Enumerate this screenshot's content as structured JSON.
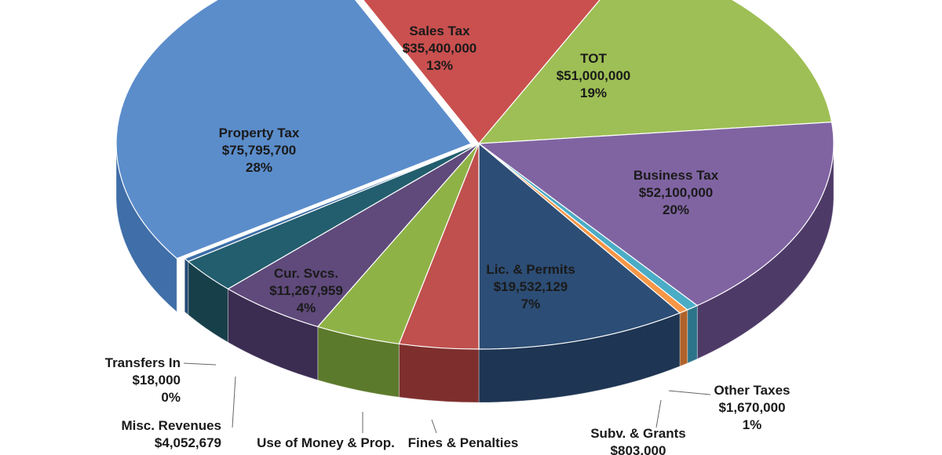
{
  "chart_data": {
    "type": "pie",
    "style": "3d-exploded",
    "slices": [
      {
        "name": "Sales Tax",
        "value_label": "$35,400,000",
        "value": 35400000,
        "percent": "13%",
        "color": "#c9504f",
        "side_color": "#8e3433"
      },
      {
        "name": "TOT",
        "value_label": "$51,000,000",
        "value": 51000000,
        "percent": "19%",
        "color": "#9ebf55",
        "side_color": "#6b8a33"
      },
      {
        "name": "Business Tax",
        "value_label": "$52,100,000",
        "value": 52100000,
        "percent": "20%",
        "color": "#8064a2",
        "side_color": "#4e3a67"
      },
      {
        "name": "Other Taxes",
        "value_label": "$1,670,000",
        "value": 1670000,
        "percent": "1%",
        "color": "#4bacc6",
        "side_color": "#2c7489"
      },
      {
        "name": "Subv. & Grants",
        "value_label": "$803,000",
        "value": 803000,
        "percent": "",
        "color": "#f79646",
        "side_color": "#b0622a"
      },
      {
        "name": "Lic. & Permits",
        "value_label": "$19,532,129",
        "value": 19532129,
        "percent": "7%",
        "color": "#2c4d75",
        "side_color": "#1e3553"
      },
      {
        "name": "Fines & Penalties",
        "value_label": "",
        "value": null,
        "percent": "",
        "color": "#c0504d",
        "side_color": "#7e2f2d"
      },
      {
        "name": "Use of Money & Prop.",
        "value_label": "",
        "value": null,
        "percent": "",
        "color": "#8fb247",
        "side_color": "#5c7a2b"
      },
      {
        "name": "Cur. Svcs.",
        "value_label": "$11,267,959",
        "value": 11267959,
        "percent": "4%",
        "color": "#5f4a7b",
        "side_color": "#3b2c52"
      },
      {
        "name": "Misc. Revenues",
        "value_label": "$4,052,679",
        "value": 4052679,
        "percent": "",
        "color": "#235e6e",
        "side_color": "#173f4a"
      },
      {
        "name": "Transfers In",
        "value_label": "$18,000",
        "value": 18000,
        "percent": "0%",
        "color": "#3d6fa8",
        "side_color": "#244a75"
      },
      {
        "name": "Property Tax",
        "value_label": "$75,795,700",
        "value": 75795700,
        "percent": "28%",
        "color": "#5b8dcb",
        "side_color": "#3f6ea8"
      }
    ]
  }
}
